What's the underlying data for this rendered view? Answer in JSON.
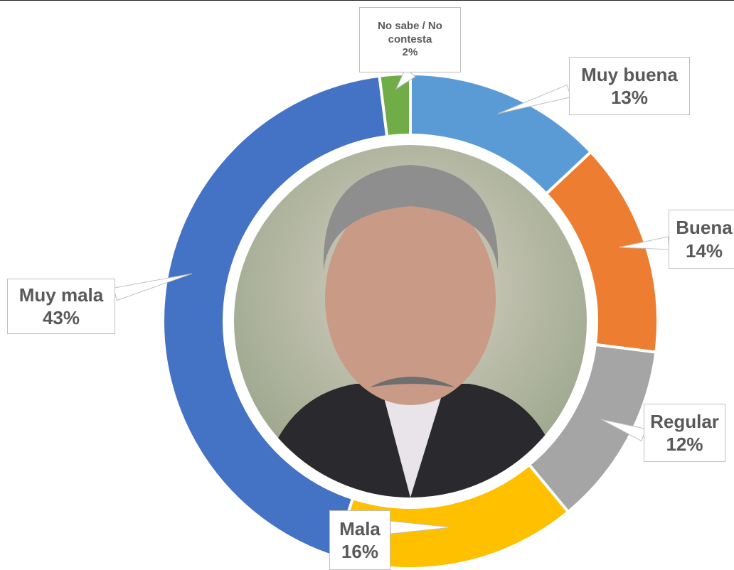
{
  "chart_data": {
    "type": "donut",
    "categories": [
      "Muy buena",
      "Buena",
      "Regular",
      "Mala",
      "Muy mala",
      "No sabe / No contesta"
    ],
    "values": [
      13,
      14,
      12,
      16,
      43,
      2
    ],
    "value_labels": [
      "13%",
      "14%",
      "12%",
      "16%",
      "43%",
      "2%"
    ],
    "colors": [
      "#5b9bd5",
      "#ed7d31",
      "#a5a5a5",
      "#ffc000",
      "#4472c4",
      "#70ad47"
    ]
  }
}
